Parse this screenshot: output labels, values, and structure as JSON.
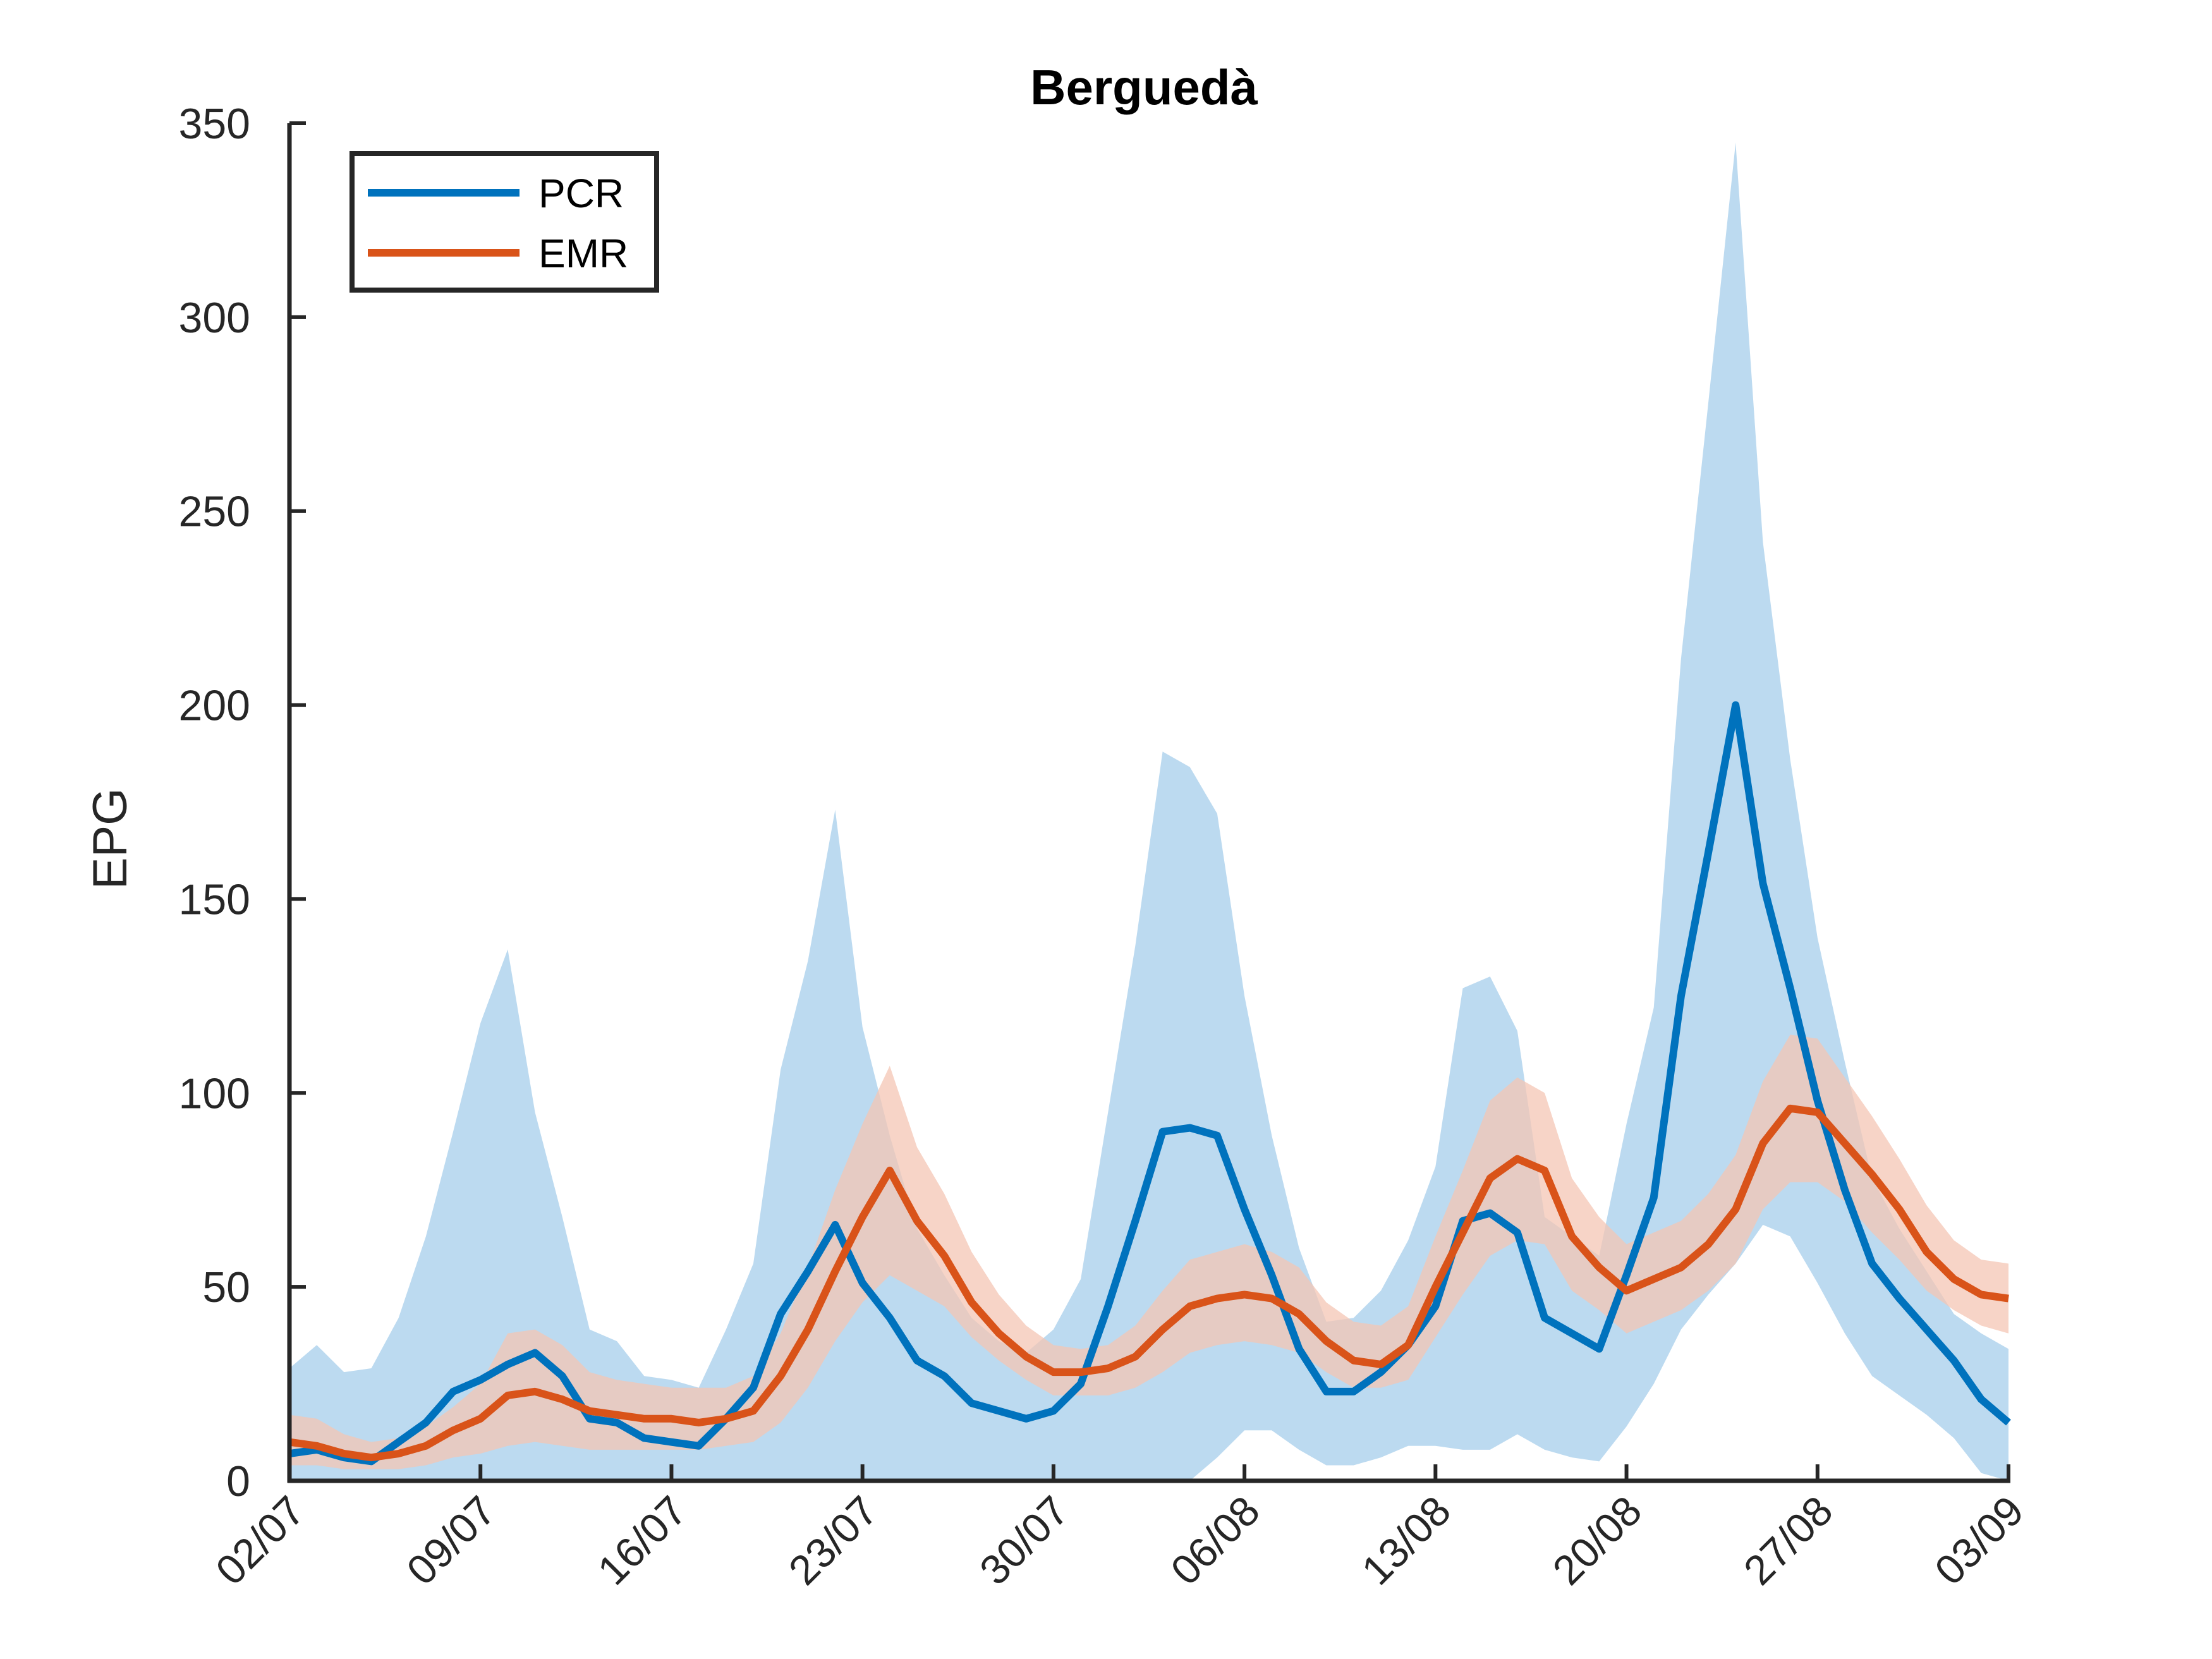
{
  "chart_data": {
    "type": "line",
    "title": "Berguedà",
    "xlabel": "",
    "ylabel": "EPG",
    "ylim": [
      0,
      350
    ],
    "yticks": [
      0,
      50,
      100,
      150,
      200,
      250,
      300,
      350
    ],
    "xticks": [
      "02/07",
      "09/07",
      "16/07",
      "23/07",
      "30/07",
      "06/08",
      "13/08",
      "20/08",
      "27/08",
      "03/09"
    ],
    "x_range_days": [
      0,
      63
    ],
    "grid": false,
    "legend_position": "top-left",
    "series": [
      {
        "name": "PCR",
        "color": "#0072BD",
        "band_color": "#B8D8EF",
        "x_days": [
          0,
          1,
          2,
          3,
          4,
          5,
          6,
          7,
          8,
          9,
          10,
          11,
          12,
          13,
          14,
          15,
          16,
          17,
          18,
          19,
          20,
          21,
          22,
          23,
          24,
          25,
          26,
          27,
          28,
          29,
          30,
          31,
          32,
          33,
          34,
          35,
          36,
          37,
          38,
          39,
          40,
          41,
          42,
          43,
          44,
          45,
          46,
          47,
          48,
          49,
          50,
          51,
          52,
          53,
          54,
          55,
          56,
          57,
          58,
          59,
          60,
          61,
          62,
          63
        ],
        "values": [
          7,
          8,
          6,
          5,
          10,
          15,
          23,
          26,
          30,
          33,
          27,
          16,
          15,
          11,
          10,
          9,
          16,
          24,
          43,
          54,
          66,
          51,
          42,
          31,
          27,
          20,
          18,
          16,
          18,
          25,
          45,
          67,
          90,
          91,
          89,
          70,
          53,
          34,
          23,
          23,
          28,
          35,
          45,
          67,
          69,
          64,
          42,
          38,
          34,
          53,
          73,
          125,
          162,
          200,
          154,
          127,
          98,
          75,
          56,
          47,
          39,
          31,
          21,
          15
        ],
        "lower": [
          0,
          0,
          0,
          0,
          0,
          0,
          0,
          0,
          0,
          0,
          0,
          0,
          0,
          0,
          0,
          0,
          0,
          0,
          0,
          0,
          0,
          0,
          0,
          0,
          0,
          0,
          0,
          0,
          0,
          0,
          0,
          0,
          0,
          0,
          6,
          13,
          13,
          8,
          4,
          4,
          6,
          9,
          9,
          8,
          8,
          12,
          8,
          6,
          5,
          14,
          25,
          39,
          48,
          56,
          66,
          63,
          51,
          38,
          27,
          22,
          17,
          11,
          2,
          0
        ],
        "upper": [
          29,
          35,
          28,
          29,
          42,
          63,
          90,
          118,
          137,
          95,
          68,
          39,
          36,
          27,
          26,
          24,
          39,
          56,
          106,
          134,
          173,
          117,
          89,
          65,
          53,
          42,
          36,
          33,
          39,
          52,
          95,
          138,
          188,
          184,
          172,
          125,
          89,
          60,
          41,
          42,
          49,
          62,
          81,
          127,
          130,
          116,
          68,
          63,
          58,
          92,
          122,
          212,
          278,
          345,
          242,
          186,
          140,
          108,
          78,
          65,
          54,
          43,
          38,
          34
        ]
      },
      {
        "name": "EMR",
        "color": "#D95319",
        "band_color": "#F4C6B4",
        "x_days": [
          0,
          1,
          2,
          3,
          4,
          5,
          6,
          7,
          8,
          9,
          10,
          11,
          12,
          13,
          14,
          15,
          16,
          17,
          18,
          19,
          20,
          21,
          22,
          23,
          24,
          25,
          26,
          27,
          28,
          29,
          30,
          31,
          32,
          33,
          34,
          35,
          36,
          37,
          38,
          39,
          40,
          41,
          42,
          43,
          44,
          45,
          46,
          47,
          48,
          49,
          50,
          51,
          52,
          53,
          54,
          55,
          56,
          57,
          58,
          59,
          60,
          61,
          62,
          63
        ],
        "values": [
          10,
          9,
          7,
          6,
          7,
          9,
          13,
          16,
          22,
          23,
          21,
          18,
          17,
          16,
          16,
          15,
          16,
          18,
          27,
          39,
          54,
          68,
          80,
          67,
          58,
          46,
          38,
          32,
          28,
          28,
          29,
          32,
          39,
          45,
          47,
          48,
          47,
          43,
          36,
          31,
          30,
          35,
          50,
          64,
          78,
          83,
          80,
          63,
          55,
          49,
          52,
          55,
          61,
          70,
          87,
          96,
          95,
          87,
          79,
          70,
          59,
          52,
          48,
          47
        ],
        "lower": [
          4,
          4,
          3,
          3,
          3,
          4,
          6,
          7,
          9,
          10,
          9,
          8,
          8,
          8,
          8,
          8,
          9,
          10,
          15,
          24,
          36,
          46,
          53,
          49,
          45,
          37,
          31,
          26,
          22,
          22,
          22,
          24,
          28,
          33,
          35,
          36,
          35,
          33,
          28,
          24,
          24,
          26,
          37,
          48,
          58,
          62,
          61,
          49,
          44,
          38,
          41,
          44,
          49,
          56,
          70,
          77,
          77,
          72,
          64,
          57,
          49,
          44,
          40,
          38
        ],
        "upper": [
          17,
          16,
          12,
          10,
          11,
          14,
          19,
          25,
          38,
          39,
          35,
          28,
          26,
          25,
          24,
          24,
          24,
          27,
          38,
          55,
          75,
          92,
          107,
          86,
          74,
          59,
          48,
          40,
          35,
          34,
          35,
          40,
          49,
          57,
          59,
          61,
          59,
          55,
          46,
          41,
          40,
          45,
          63,
          80,
          98,
          104,
          100,
          78,
          68,
          61,
          64,
          67,
          74,
          84,
          103,
          115,
          114,
          104,
          94,
          83,
          71,
          62,
          57,
          56
        ]
      }
    ]
  }
}
